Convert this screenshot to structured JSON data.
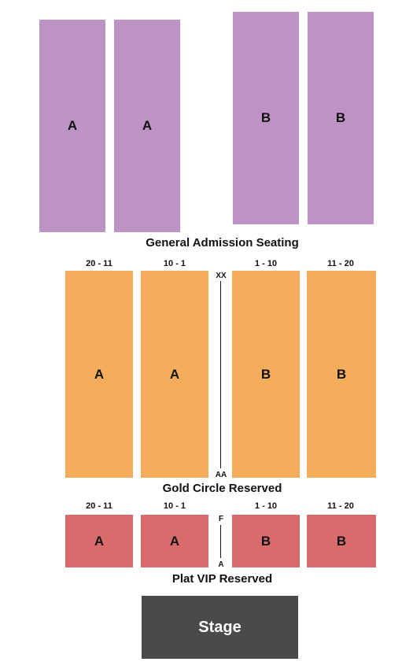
{
  "general_admission": {
    "title": "General Admission Seating",
    "blocks": [
      "A",
      "A",
      "B",
      "B"
    ]
  },
  "gold_circle": {
    "title": "Gold Circle Reserved",
    "ranges": [
      "20 - 11",
      "10 - 1",
      "1 - 10",
      "11 - 20"
    ],
    "blocks": [
      "A",
      "A",
      "B",
      "B"
    ],
    "row_top": "XX",
    "row_bottom": "AA"
  },
  "plat_vip": {
    "title": "Plat VIP Reserved",
    "ranges": [
      "20 - 11",
      "10 - 1",
      "1 - 10",
      "11 - 20"
    ],
    "blocks": [
      "A",
      "A",
      "B",
      "B"
    ],
    "row_top": "F",
    "row_bottom": "A"
  },
  "stage": {
    "label": "Stage"
  },
  "colors": {
    "general_admission": "#bc93c4",
    "gold_circle": "#f4ad5a",
    "plat_vip": "#d86b6b",
    "stage": "#4a4a4a"
  }
}
